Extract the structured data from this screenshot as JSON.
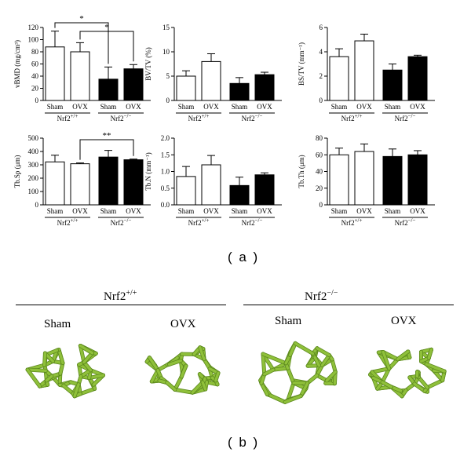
{
  "chart_data": [
    {
      "type": "bar",
      "ylabel": "vBMD (mg/cm³)",
      "ylim": [
        0,
        120
      ],
      "yticks": [
        0,
        20,
        40,
        60,
        80,
        100,
        120
      ],
      "categories": [
        "Sham",
        "OVX",
        "Sham",
        "OVX"
      ],
      "values": [
        88,
        80,
        35,
        52
      ],
      "errors": [
        26,
        15,
        20,
        7
      ],
      "fill": [
        "#ffffff",
        "#ffffff",
        "#000000",
        "#000000"
      ],
      "groups": [
        "Nrf2+/+",
        "Nrf2−/−"
      ],
      "significance": [
        {
          "from": 0,
          "to": 2,
          "label": "*"
        },
        {
          "from": 1,
          "to": 3,
          "label": "*"
        }
      ]
    },
    {
      "type": "bar",
      "ylabel": "BV/TV (%)",
      "ylim": [
        0,
        15
      ],
      "yticks": [
        0,
        5,
        10,
        15
      ],
      "categories": [
        "Sham",
        "OVX",
        "Sham",
        "OVX"
      ],
      "values": [
        5,
        8,
        3.5,
        5.3
      ],
      "errors": [
        1.1,
        1.6,
        1.2,
        0.5
      ],
      "fill": [
        "#ffffff",
        "#ffffff",
        "#000000",
        "#000000"
      ],
      "groups": [
        "Nrf2+/+",
        "Nrf2−/−"
      ],
      "significance": []
    },
    {
      "type": "bar",
      "ylabel": "BS/TV (mm⁻¹)",
      "ylim": [
        0,
        6
      ],
      "yticks": [
        0,
        2,
        4,
        6
      ],
      "categories": [
        "Sham",
        "OVX",
        "Sham",
        "OVX"
      ],
      "values": [
        3.6,
        4.9,
        2.5,
        3.6
      ],
      "errors": [
        0.65,
        0.55,
        0.5,
        0.12
      ],
      "fill": [
        "#ffffff",
        "#ffffff",
        "#000000",
        "#000000"
      ],
      "groups": [
        "Nrf2+/+",
        "Nrf2−/−"
      ],
      "significance": []
    },
    {
      "type": "bar",
      "ylabel": "Tb.Sp (μm)",
      "ylim": [
        0,
        500
      ],
      "yticks": [
        0,
        100,
        200,
        300,
        400,
        500
      ],
      "categories": [
        "Sham",
        "OVX",
        "Sham",
        "OVX"
      ],
      "values": [
        322,
        308,
        358,
        338
      ],
      "errors": [
        50,
        6,
        50,
        5
      ],
      "fill": [
        "#ffffff",
        "#ffffff",
        "#000000",
        "#000000"
      ],
      "groups": [
        "Nrf2+/+",
        "Nrf2−/−"
      ],
      "significance": [
        {
          "from": 1,
          "to": 3,
          "label": "**"
        }
      ]
    },
    {
      "type": "bar",
      "ylabel": "Tb.N (mm⁻¹)",
      "ylim": [
        0,
        2.0
      ],
      "yticks": [
        0.0,
        0.5,
        1.0,
        1.5,
        2.0
      ],
      "categories": [
        "Sham",
        "OVX",
        "Sham",
        "OVX"
      ],
      "values": [
        0.85,
        1.2,
        0.58,
        0.9
      ],
      "errors": [
        0.3,
        0.28,
        0.25,
        0.06
      ],
      "fill": [
        "#ffffff",
        "#ffffff",
        "#000000",
        "#000000"
      ],
      "groups": [
        "Nrf2+/+",
        "Nrf2−/−"
      ],
      "significance": []
    },
    {
      "type": "bar",
      "ylabel": "Tb.Th (μm)",
      "ylim": [
        0,
        80
      ],
      "yticks": [
        0,
        20,
        40,
        60,
        80
      ],
      "categories": [
        "Sham",
        "OVX",
        "Sham",
        "OVX"
      ],
      "values": [
        60,
        64,
        58,
        60
      ],
      "errors": [
        8,
        9,
        9,
        5
      ],
      "fill": [
        "#ffffff",
        "#ffffff",
        "#000000",
        "#000000"
      ],
      "groups": [
        "Nrf2+/+",
        "Nrf2−/−"
      ],
      "significance": []
    }
  ],
  "labels": {
    "panel_a": "( a )",
    "panel_b": "( b )"
  },
  "images": {
    "genotypes": [
      {
        "name": "Nrf2",
        "sup": "+/+"
      },
      {
        "name": "Nrf2",
        "sup": "−/−"
      }
    ],
    "conditions": [
      "Sham",
      "OVX",
      "Sham",
      "OVX"
    ],
    "bone_color": "#8fc03a",
    "bone_dark": "#5d8a1e"
  }
}
